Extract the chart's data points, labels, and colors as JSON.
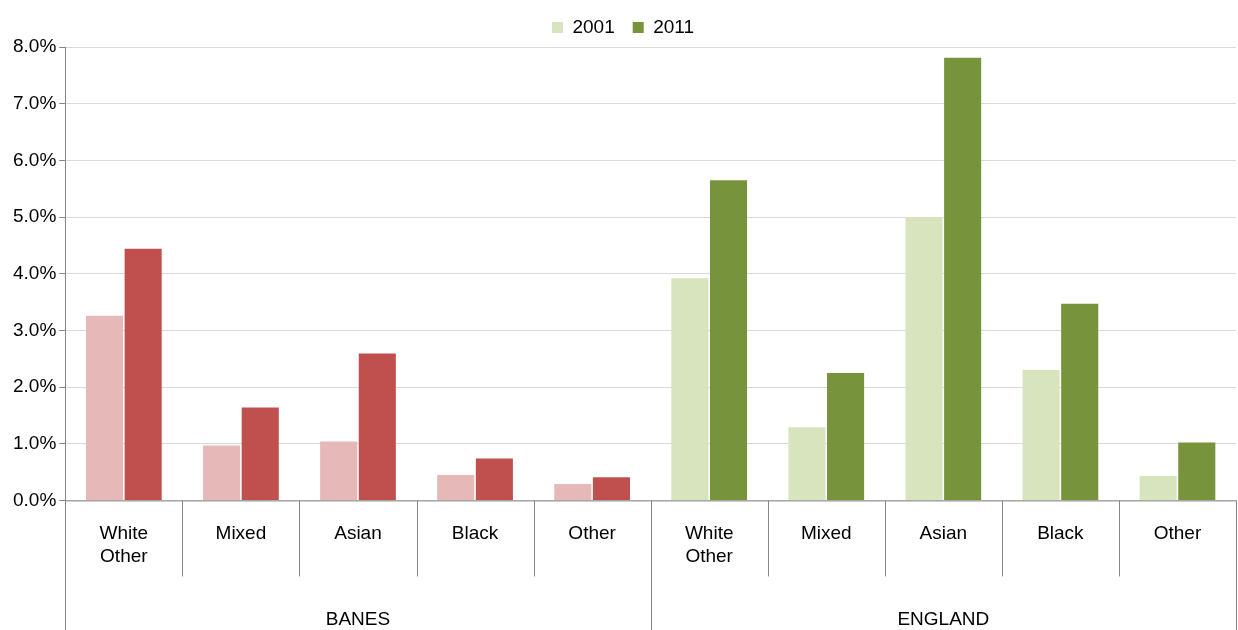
{
  "chart_data": {
    "type": "bar",
    "categories": [
      "White Other",
      "Mixed",
      "Asian",
      "Black",
      "Other",
      "White Other",
      "Mixed",
      "Asian",
      "Black",
      "Other"
    ],
    "series": [
      {
        "name": "2001",
        "color": "#d7e4bd",
        "colors": [
          "#e6b9b8",
          "#e6b9b8",
          "#e6b9b8",
          "#e6b9b8",
          "#e6b9b8",
          "#d7e4bd",
          "#d7e4bd",
          "#d7e4bd",
          "#d7e4bd",
          "#d7e4bd"
        ],
        "values": [
          3.26,
          0.97,
          1.04,
          0.45,
          0.29,
          3.92,
          1.29,
          5.0,
          2.3,
          0.43
        ]
      },
      {
        "name": "2011",
        "color": "#77933c",
        "colors": [
          "#c0504d",
          "#c0504d",
          "#c0504d",
          "#c0504d",
          "#c0504d",
          "#77933c",
          "#77933c",
          "#77933c",
          "#77933c",
          "#77933c"
        ],
        "values": [
          4.44,
          1.64,
          2.59,
          0.74,
          0.41,
          5.65,
          2.25,
          7.81,
          3.47,
          1.02
        ]
      }
    ],
    "annotations": [
      "BANES",
      "ENGLAND"
    ],
    "ylim": [
      0,
      8
    ],
    "yticks": [
      {
        "value": 0,
        "label": "0.0%"
      },
      {
        "value": 1,
        "label": "1.0%"
      },
      {
        "value": 2,
        "label": "2.0%"
      },
      {
        "value": 3,
        "label": "3.0%"
      },
      {
        "value": 4,
        "label": "4.0%"
      },
      {
        "value": 5,
        "label": "5.0%"
      },
      {
        "value": 6,
        "label": "6.0%"
      },
      {
        "value": 7,
        "label": "7.0%"
      },
      {
        "value": 8,
        "label": "8.0%"
      }
    ],
    "grid": "y",
    "legend": "top"
  }
}
